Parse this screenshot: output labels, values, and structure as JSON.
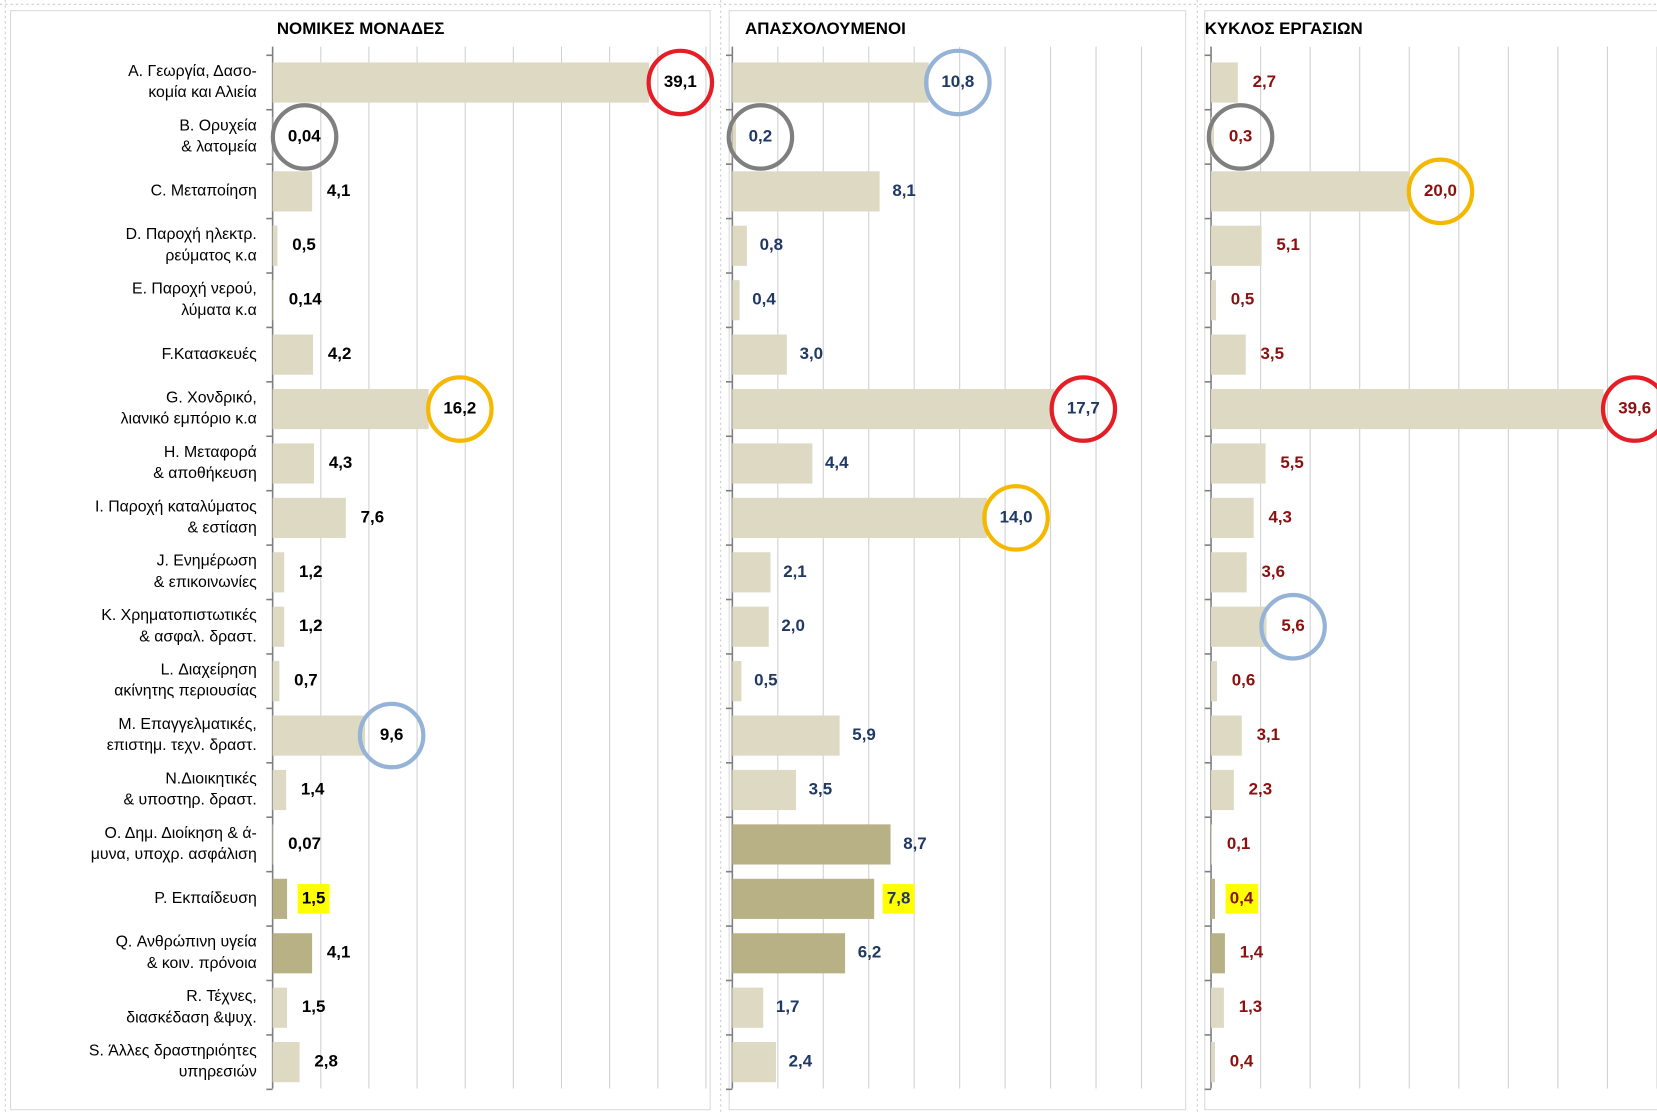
{
  "chart_data": [
    {
      "type": "bar",
      "orientation": "horizontal",
      "title": "ΝΟΜΙΚΕΣ ΜΟΝΑΔΕΣ",
      "title_color": "#000000",
      "label_color": "#000000",
      "categories": [
        "Α. Γεωργία, Δασο-\nκομία και Αλιεία",
        "Β. Ορυχεία\n& λατομεία",
        "C. Μεταποίηση",
        "D. Παροχή ηλεκτρ.\nρεύματος κ.α",
        "Ε. Παροχή νερού,\nλύματα κ.α",
        "F.Κατασκευές",
        "G. Χονδρικό,\nλιανικό εμπόριο κ.α",
        "Η. Μεταφορά\n& αποθήκευση",
        "Ι. Παροχή καταλύματος\n& εστίαση",
        "J. Ενημέρωση\n& επικοινωνίες",
        "Κ. Χρηματοπιστωτικές\n& ασφαλ. δραστ.",
        "L. Διαχείρηση\nακίνητης περιουσίας",
        "Μ. Επαγγελματικές,\nεπιστημ. τεχν. δραστ.",
        "Ν.Διοικητικές\n& υποστηρ. δραστ.",
        "Ο. Δημ. Διοίκηση & ά-\nμυνα, υποχρ. ασφάλιση",
        "Ρ. Εκπαίδευση",
        "Q. Ανθρώπινη υγεία\n& κοιν. πρόνοια",
        "R. Τέχνες,\nδιασκέδαση &ψυχ.",
        "S. Άλλες δραστηριόητες\nυπηρεσιών"
      ],
      "values": [
        39.1,
        0.04,
        4.1,
        0.5,
        0.14,
        4.2,
        16.2,
        4.3,
        7.6,
        1.2,
        1.2,
        0.7,
        9.6,
        1.4,
        0.07,
        1.5,
        4.1,
        1.5,
        2.8
      ],
      "value_labels": [
        "39,1",
        "0,04",
        "4,1",
        "0,5",
        "0,14",
        "4,2",
        "16,2",
        "4,3",
        "7,6",
        "1,2",
        "1,2",
        "0,7",
        "9,6",
        "1,4",
        "0,07",
        "1,5",
        "4,1",
        "1,5",
        "2,8"
      ],
      "colors": [
        "#ddd9c3",
        "#ddd9c3",
        "#ddd9c3",
        "#ddd9c3",
        "#ddd9c3",
        "#ddd9c3",
        "#ddd9c3",
        "#ddd9c3",
        "#ddd9c3",
        "#ddd9c3",
        "#ddd9c3",
        "#ddd9c3",
        "#ddd9c3",
        "#ddd9c3",
        "#ddd9c3",
        "#b8b186",
        "#b8b186",
        "#ddd9c3",
        "#ddd9c3"
      ],
      "label_circles": [
        "#e41e26",
        "#7f7f7f",
        null,
        null,
        null,
        null,
        "#f5b800",
        null,
        null,
        null,
        null,
        null,
        "#95b3d7",
        null,
        null,
        null,
        null,
        null,
        null
      ],
      "label_highlights": [
        null,
        null,
        null,
        null,
        null,
        null,
        null,
        null,
        null,
        null,
        null,
        null,
        null,
        null,
        null,
        "#ffff00",
        null,
        null,
        null
      ],
      "xlim": [
        0,
        45
      ],
      "xticks": [
        0,
        5,
        10,
        15,
        20,
        25,
        30,
        35,
        40,
        45
      ],
      "grid": true
    },
    {
      "type": "bar",
      "orientation": "horizontal",
      "title": "ΑΠΑΣΧΟΛΟΥΜΕΝΟΙ",
      "title_color": "#1f3a93",
      "label_color": "#1f3864",
      "values": [
        10.8,
        0.2,
        8.1,
        0.8,
        0.4,
        3.0,
        17.7,
        4.4,
        14.0,
        2.1,
        2.0,
        0.5,
        5.9,
        3.5,
        8.7,
        7.8,
        6.2,
        1.7,
        2.4
      ],
      "value_labels": [
        "10,8",
        "0,2",
        "8,1",
        "0,8",
        "0,4",
        "3,0",
        "17,7",
        "4,4",
        "14,0",
        "2,1",
        "2,0",
        "0,5",
        "5,9",
        "3,5",
        "8,7",
        "7,8",
        "6,2",
        "1,7",
        "2,4"
      ],
      "colors": [
        "#ddd9c3",
        "#ddd9c3",
        "#ddd9c3",
        "#ddd9c3",
        "#ddd9c3",
        "#ddd9c3",
        "#ddd9c3",
        "#ddd9c3",
        "#ddd9c3",
        "#ddd9c3",
        "#ddd9c3",
        "#ddd9c3",
        "#ddd9c3",
        "#ddd9c3",
        "#b8b186",
        "#b8b186",
        "#b8b186",
        "#ddd9c3",
        "#ddd9c3"
      ],
      "label_circles": [
        "#95b3d7",
        "#7f7f7f",
        null,
        null,
        null,
        null,
        "#e41e26",
        null,
        "#f5b800",
        null,
        null,
        null,
        null,
        null,
        null,
        null,
        null,
        null,
        null
      ],
      "label_highlights": [
        null,
        null,
        null,
        null,
        null,
        null,
        null,
        null,
        null,
        null,
        null,
        null,
        null,
        null,
        null,
        "#ffff00",
        null,
        null,
        null
      ],
      "xlim": [
        0,
        24
      ],
      "xticks": [
        0,
        2.5,
        5,
        7.5,
        10,
        12.5,
        15,
        17.5,
        20,
        22.5
      ],
      "grid": true
    },
    {
      "type": "bar",
      "orientation": "horizontal",
      "title": "ΚΥΚΛΟΣ ΕΡΓΑΣΙΩΝ",
      "title_color": "#8b0d0d",
      "label_color": "#8b1010",
      "values": [
        2.7,
        0.3,
        20.0,
        5.1,
        0.5,
        3.5,
        39.6,
        5.5,
        4.3,
        3.6,
        5.6,
        0.6,
        3.1,
        2.3,
        0.1,
        0.4,
        1.4,
        1.3,
        0.4
      ],
      "value_labels": [
        "2,7",
        "0,3",
        "20,0",
        "5,1",
        "0,5",
        "3,5",
        "39,6",
        "5,5",
        "4,3",
        "3,6",
        "5,6",
        "0,6",
        "3,1",
        "2,3",
        "0,1",
        "0,4",
        "1,4",
        "1,3",
        "0,4"
      ],
      "colors": [
        "#ddd9c3",
        "#ddd9c3",
        "#ddd9c3",
        "#ddd9c3",
        "#ddd9c3",
        "#ddd9c3",
        "#ddd9c3",
        "#ddd9c3",
        "#ddd9c3",
        "#ddd9c3",
        "#ddd9c3",
        "#ddd9c3",
        "#ddd9c3",
        "#ddd9c3",
        "#ddd9c3",
        "#b8b186",
        "#b8b186",
        "#ddd9c3",
        "#ddd9c3"
      ],
      "label_circles": [
        null,
        "#7f7f7f",
        "#f5b800",
        null,
        null,
        null,
        "#e41e26",
        null,
        null,
        null,
        "#95b3d7",
        null,
        null,
        null,
        null,
        null,
        null,
        null,
        null
      ],
      "label_highlights": [
        null,
        null,
        null,
        null,
        null,
        null,
        null,
        null,
        null,
        null,
        null,
        null,
        null,
        null,
        null,
        "#ffff00",
        null,
        null,
        null
      ],
      "xlim": [
        0,
        45
      ],
      "xticks": [
        0,
        5,
        10,
        15,
        20,
        25,
        30,
        35,
        40,
        45
      ],
      "grid": true
    }
  ]
}
